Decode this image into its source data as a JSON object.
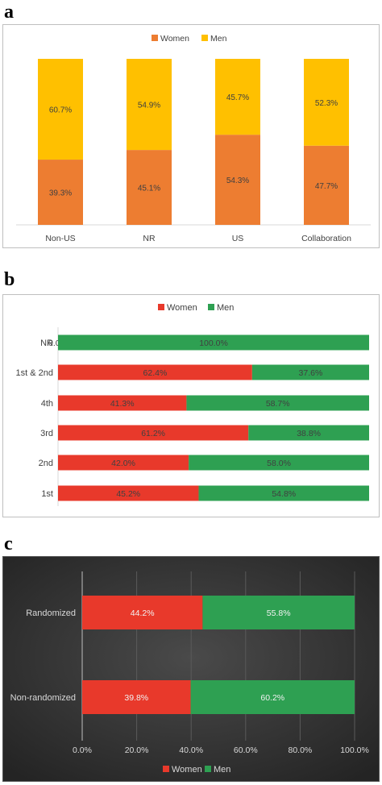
{
  "panels": {
    "a": {
      "letter": "a"
    },
    "b": {
      "letter": "b"
    },
    "c": {
      "letter": "c"
    }
  },
  "colors": {
    "women_a": "#ED7D31",
    "men_a": "#FFC000",
    "women_b": "#E8392B",
    "men_b": "#2EA052",
    "women_c": "#E8392B",
    "men_c": "#2EA052",
    "panel_c_bg": "#3a3a3a"
  },
  "chart_data": [
    {
      "id": "a",
      "type": "bar",
      "stacked": true,
      "orientation": "vertical",
      "categories": [
        "Non-US",
        "NR",
        "US",
        "Collaboration"
      ],
      "series": [
        {
          "name": "Women",
          "values": [
            39.3,
            45.1,
            54.3,
            47.7
          ],
          "labels": [
            "39.3%",
            "45.1%",
            "54.3%",
            "47.7%"
          ]
        },
        {
          "name": "Men",
          "values": [
            60.7,
            54.9,
            45.7,
            52.3
          ],
          "labels": [
            "60.7%",
            "54.9%",
            "45.7%",
            "52.3%"
          ]
        }
      ],
      "ylim": [
        0,
        100
      ],
      "legend": "top-center",
      "grid": false
    },
    {
      "id": "b",
      "type": "bar",
      "stacked": true,
      "orientation": "horizontal",
      "categories": [
        "NR",
        "1st & 2nd",
        "4th",
        "3rd",
        "2nd",
        "1st"
      ],
      "series": [
        {
          "name": "Women",
          "values": [
            0.0,
            62.4,
            41.3,
            61.2,
            42.0,
            45.2
          ],
          "labels": [
            "0.0%",
            "62.4%",
            "41.3%",
            "61.2%",
            "42.0%",
            "45.2%"
          ]
        },
        {
          "name": "Men",
          "values": [
            100.0,
            37.6,
            58.7,
            38.8,
            58.0,
            54.8
          ],
          "labels": [
            "100.0%",
            "37.6%",
            "58.7%",
            "38.8%",
            "58.0%",
            "54.8%"
          ]
        }
      ],
      "xlim": [
        0,
        100
      ],
      "legend": "top-center",
      "grid": false
    },
    {
      "id": "c",
      "type": "bar",
      "stacked": true,
      "orientation": "horizontal",
      "categories": [
        "Randomized",
        "Non-randomized"
      ],
      "series": [
        {
          "name": "Women",
          "values": [
            44.2,
            39.8
          ],
          "labels": [
            "44.2%",
            "39.8%"
          ]
        },
        {
          "name": "Men",
          "values": [
            55.8,
            60.2
          ],
          "labels": [
            "55.8%",
            "60.2%"
          ]
        }
      ],
      "xlim": [
        0,
        100
      ],
      "xticks": [
        "0.0%",
        "20.0%",
        "40.0%",
        "60.0%",
        "80.0%",
        "100.0%"
      ],
      "legend": "bottom-center",
      "grid": true
    }
  ]
}
